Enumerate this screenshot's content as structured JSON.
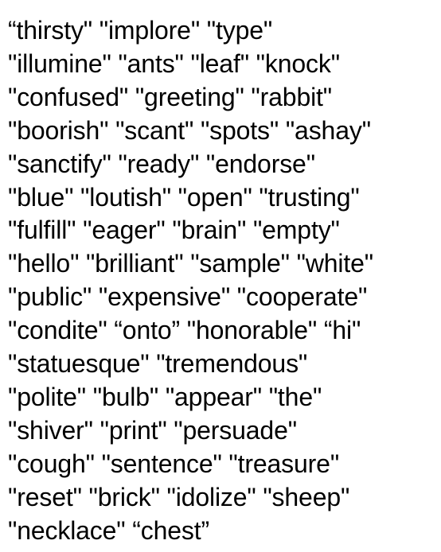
{
  "lines": [
    "“thirsty\" \"implore\" \"type\"",
    "\"illumine\" \"ants\" \"leaf\" \"knock\"",
    "\"confused\" \"greeting\" \"rabbit\"",
    "\"boorish\" \"scant\" \"spots\" \"ashay\"",
    "\"sanctify\" \"ready\" \"endorse\"",
    "\"blue\" \"loutish\" \"open\" \"trusting\"",
    "\"fulfill\" \"eager\" \"brain\" \"empty\"",
    "\"hello\" \"brilliant\" \"sample\" \"white\"",
    "\"public\" \"expensive\" \"cooperate\"",
    "\"condite\" “onto” \"honorable\" “hi\"",
    "\"statuesque\" \"tremendous\"",
    "\"polite\" \"bulb\" \"appear\" \"the\"",
    "\"shiver\" \"print\" \"persuade\"",
    "\"cough\" \"sentence\" \"treasure\"",
    "\"reset\" \"brick\" \"idolize\" \"sheep\"",
    "\"necklace\" “chest”"
  ]
}
